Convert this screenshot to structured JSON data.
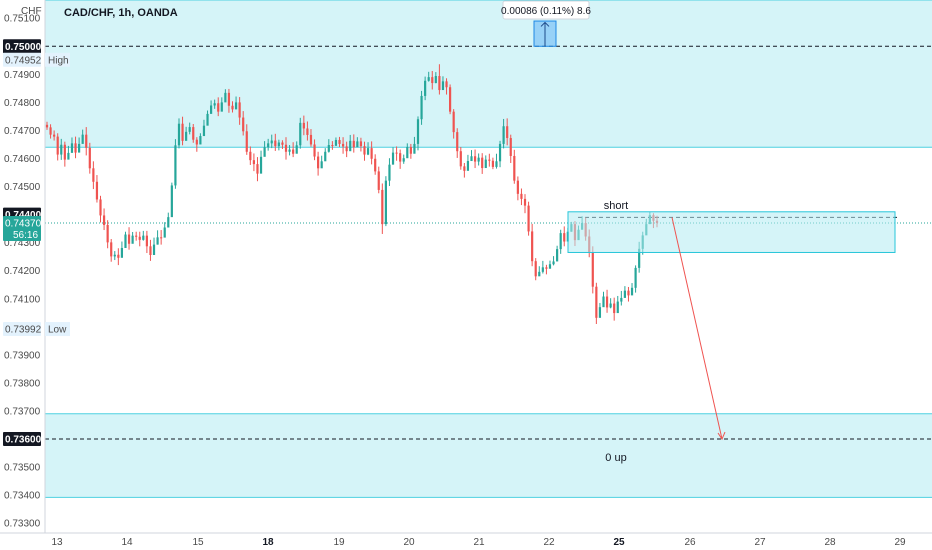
{
  "chart_data": {
    "type": "candlestick",
    "title": "CAD/CHF, 1h, OANDA",
    "currency": "CHF",
    "y_axis": {
      "ticks": [
        "0.75100",
        "0.74900",
        "0.74800",
        "0.74700",
        "0.74600",
        "0.74500",
        "0.74300",
        "0.74200",
        "0.74100",
        "0.73900",
        "0.73800",
        "0.73700",
        "0.73500",
        "0.73400",
        "0.73300"
      ],
      "ylim": [
        0.73265,
        0.75165
      ]
    },
    "x_axis": {
      "labels": [
        "13",
        "14",
        "15",
        "18",
        "19",
        "20",
        "21",
        "22",
        "25",
        "26",
        "27",
        "28",
        "29"
      ],
      "bold_labels": [
        "18",
        "25"
      ]
    },
    "price_labels": [
      {
        "value": "0.75000",
        "style": "dark"
      },
      {
        "value": "0.74952",
        "style": "light",
        "note": "High"
      },
      {
        "value": "0.74400",
        "style": "dark"
      },
      {
        "value": "0.74370",
        "style": "green",
        "note": "56:16"
      },
      {
        "value": "0.73992",
        "style": "light",
        "note": "Low"
      },
      {
        "value": "0.73600",
        "style": "dark"
      }
    ],
    "zones": [
      {
        "from": 0.7464,
        "to": 0.75165
      },
      {
        "from": 0.73392,
        "to": 0.7369
      }
    ],
    "dashed_levels": [
      0.75,
      0.7439,
      0.736
    ],
    "measure_label": "0.00086 (0.11%) 8.6",
    "annotations": {
      "short_label": "short",
      "target_label": "0 up"
    },
    "trade_zone": {
      "top": 0.7441,
      "bottom": 0.74265
    },
    "projection": {
      "from": [
        672,
        0.7439
      ],
      "to": [
        722,
        0.736
      ]
    },
    "candles": [
      [
        0.7472,
        0.74711,
        0.74731,
        0.74702
      ],
      [
        0.74711,
        0.74685,
        0.74722,
        0.74671
      ],
      [
        0.74685,
        0.74678,
        0.747,
        0.74664
      ],
      [
        0.74678,
        0.74614,
        0.7469,
        0.74593
      ],
      [
        0.74614,
        0.74649,
        0.7467,
        0.74595
      ],
      [
        0.74649,
        0.74596,
        0.7466,
        0.74571
      ],
      [
        0.74596,
        0.7462,
        0.74645,
        0.74604
      ],
      [
        0.7462,
        0.74654,
        0.74675,
        0.74634
      ],
      [
        0.74654,
        0.74621,
        0.74678,
        0.74601
      ],
      [
        0.74621,
        0.74652,
        0.74675,
        0.74627
      ],
      [
        0.74652,
        0.74685,
        0.74703,
        0.74669
      ],
      [
        0.74685,
        0.74638,
        0.74712,
        0.74611
      ],
      [
        0.74638,
        0.74565,
        0.74656,
        0.74546
      ],
      [
        0.74565,
        0.74517,
        0.7459,
        0.74491
      ],
      [
        0.74517,
        0.74454,
        0.74541,
        0.74443
      ],
      [
        0.74454,
        0.74397,
        0.74467,
        0.74372
      ],
      [
        0.74397,
        0.74363,
        0.74422,
        0.74345
      ],
      [
        0.74363,
        0.74301,
        0.7438,
        0.7428
      ],
      [
        0.74301,
        0.74251,
        0.74313,
        0.74232
      ],
      [
        0.74251,
        0.74257,
        0.7427,
        0.74238
      ],
      [
        0.74257,
        0.74246,
        0.7428,
        0.7422
      ],
      [
        0.74246,
        0.74281,
        0.74304,
        0.74268
      ],
      [
        0.74281,
        0.74329,
        0.74339,
        0.74313
      ],
      [
        0.74329,
        0.74296,
        0.74355,
        0.74275
      ],
      [
        0.74296,
        0.74325,
        0.74338,
        0.74316
      ],
      [
        0.74325,
        0.74321,
        0.74339,
        0.74307
      ],
      [
        0.74321,
        0.7431,
        0.74339,
        0.74287
      ],
      [
        0.7431,
        0.74325,
        0.74342,
        0.74307
      ],
      [
        0.74325,
        0.74287,
        0.74342,
        0.74263
      ],
      [
        0.74287,
        0.74256,
        0.7431,
        0.74235
      ],
      [
        0.74256,
        0.74293,
        0.74318,
        0.74269
      ],
      [
        0.74293,
        0.74319,
        0.74344,
        0.74293
      ],
      [
        0.74319,
        0.74318,
        0.74345,
        0.74293
      ],
      [
        0.74318,
        0.74354,
        0.74373,
        0.74334
      ],
      [
        0.74354,
        0.74391,
        0.74407,
        0.74383
      ],
      [
        0.74391,
        0.74504,
        0.74514,
        0.74393
      ],
      [
        0.74504,
        0.74647,
        0.74669,
        0.74492
      ],
      [
        0.74647,
        0.74724,
        0.74743,
        0.74636
      ],
      [
        0.74724,
        0.74663,
        0.74749,
        0.74647
      ],
      [
        0.74663,
        0.74695,
        0.74713,
        0.7467
      ],
      [
        0.74695,
        0.74712,
        0.74728,
        0.74686
      ],
      [
        0.74712,
        0.74667,
        0.74723,
        0.74656
      ],
      [
        0.74667,
        0.7465,
        0.74676,
        0.74624
      ],
      [
        0.7465,
        0.7468,
        0.7469,
        0.7466
      ],
      [
        0.7468,
        0.74717,
        0.74738,
        0.74708
      ],
      [
        0.74717,
        0.74759,
        0.74771,
        0.74732
      ],
      [
        0.74759,
        0.74789,
        0.74807,
        0.74765
      ],
      [
        0.74789,
        0.74797,
        0.7481,
        0.74777
      ],
      [
        0.74797,
        0.74767,
        0.74818,
        0.74751
      ],
      [
        0.74767,
        0.748,
        0.74818,
        0.7479
      ],
      [
        0.748,
        0.74834,
        0.74847,
        0.74809
      ],
      [
        0.74834,
        0.74788,
        0.74848,
        0.74763
      ],
      [
        0.74788,
        0.74775,
        0.74804,
        0.74764
      ],
      [
        0.74775,
        0.748,
        0.74821,
        0.74778
      ],
      [
        0.748,
        0.74746,
        0.74819,
        0.7472
      ],
      [
        0.74746,
        0.74697,
        0.74769,
        0.74682
      ],
      [
        0.74697,
        0.74624,
        0.74722,
        0.74613
      ],
      [
        0.74624,
        0.74594,
        0.74643,
        0.74577
      ],
      [
        0.74594,
        0.7458,
        0.74618,
        0.74555
      ],
      [
        0.7458,
        0.74546,
        0.74605,
        0.74519
      ],
      [
        0.74546,
        0.74606,
        0.74628,
        0.74587
      ],
      [
        0.74606,
        0.7464,
        0.74662,
        0.74617
      ],
      [
        0.7464,
        0.74654,
        0.7467,
        0.74628
      ],
      [
        0.74654,
        0.74664,
        0.74685,
        0.74637
      ],
      [
        0.74664,
        0.74644,
        0.74688,
        0.74627
      ],
      [
        0.74644,
        0.74657,
        0.74667,
        0.74629
      ],
      [
        0.74657,
        0.74649,
        0.74665,
        0.74634
      ],
      [
        0.74649,
        0.74624,
        0.74676,
        0.74596
      ],
      [
        0.74624,
        0.74632,
        0.74648,
        0.74611
      ],
      [
        0.74632,
        0.74617,
        0.74658,
        0.74605
      ],
      [
        0.74617,
        0.74647,
        0.74661,
        0.7463
      ],
      [
        0.74647,
        0.74727,
        0.74745,
        0.74635
      ],
      [
        0.74727,
        0.74707,
        0.74753,
        0.74683
      ],
      [
        0.74707,
        0.74684,
        0.74732,
        0.74664
      ],
      [
        0.74684,
        0.7465,
        0.74705,
        0.74642
      ],
      [
        0.7465,
        0.74607,
        0.74668,
        0.74594
      ],
      [
        0.74607,
        0.74565,
        0.74624,
        0.74539
      ],
      [
        0.74565,
        0.7459,
        0.7461,
        0.74569
      ],
      [
        0.7459,
        0.74624,
        0.74637,
        0.74598
      ],
      [
        0.74624,
        0.74648,
        0.74669,
        0.74621
      ],
      [
        0.74648,
        0.74645,
        0.74662,
        0.74631
      ],
      [
        0.74645,
        0.74666,
        0.74675,
        0.7465
      ],
      [
        0.74666,
        0.74652,
        0.74677,
        0.74641
      ],
      [
        0.74652,
        0.74643,
        0.74676,
        0.74617
      ],
      [
        0.74643,
        0.74626,
        0.7466,
        0.74605
      ],
      [
        0.74626,
        0.74663,
        0.74684,
        0.74654
      ],
      [
        0.74663,
        0.7464,
        0.74686,
        0.74621
      ],
      [
        0.7464,
        0.74661,
        0.74676,
        0.74651
      ],
      [
        0.74661,
        0.74644,
        0.74674,
        0.74625
      ],
      [
        0.74644,
        0.74614,
        0.7466,
        0.74592
      ],
      [
        0.74614,
        0.74637,
        0.74658,
        0.74612
      ],
      [
        0.74637,
        0.74599,
        0.74661,
        0.74579
      ],
      [
        0.74599,
        0.74554,
        0.74615,
        0.74542
      ],
      [
        0.74554,
        0.74488,
        0.74571,
        0.74476
      ],
      [
        0.74488,
        0.74366,
        0.74511,
        0.74331
      ],
      [
        0.74366,
        0.74521,
        0.74537,
        0.74359
      ],
      [
        0.74521,
        0.74578,
        0.74601,
        0.74502
      ],
      [
        0.74578,
        0.74621,
        0.7464,
        0.74595
      ],
      [
        0.74621,
        0.74619,
        0.74643,
        0.74592
      ],
      [
        0.74619,
        0.74589,
        0.74632,
        0.74563
      ],
      [
        0.74589,
        0.74601,
        0.74614,
        0.74581
      ],
      [
        0.74601,
        0.74641,
        0.74654,
        0.74619
      ],
      [
        0.74641,
        0.74617,
        0.74652,
        0.74599
      ],
      [
        0.74617,
        0.74652,
        0.74677,
        0.74636
      ],
      [
        0.74652,
        0.7474,
        0.7475,
        0.74629
      ],
      [
        0.7474,
        0.74823,
        0.74841,
        0.7472
      ],
      [
        0.74823,
        0.74877,
        0.74892,
        0.74808
      ],
      [
        0.74877,
        0.7489,
        0.74909,
        0.74874
      ],
      [
        0.7489,
        0.74869,
        0.74912,
        0.74846
      ],
      [
        0.74869,
        0.74894,
        0.74908,
        0.74868
      ],
      [
        0.74894,
        0.74844,
        0.74936,
        0.74828
      ],
      [
        0.74844,
        0.74875,
        0.74893,
        0.74847
      ],
      [
        0.74875,
        0.74854,
        0.74886,
        0.74828
      ],
      [
        0.74854,
        0.74767,
        0.74864,
        0.74758
      ],
      [
        0.74767,
        0.74694,
        0.74776,
        0.74671
      ],
      [
        0.74694,
        0.74626,
        0.74708,
        0.74602
      ],
      [
        0.74626,
        0.74572,
        0.74641,
        0.7456
      ],
      [
        0.74572,
        0.74556,
        0.74584,
        0.74532
      ],
      [
        0.74556,
        0.74591,
        0.74613,
        0.74578
      ],
      [
        0.74591,
        0.74608,
        0.7463,
        0.74595
      ],
      [
        0.74608,
        0.74589,
        0.74632,
        0.74566
      ],
      [
        0.74589,
        0.74603,
        0.74618,
        0.74575
      ],
      [
        0.74603,
        0.74566,
        0.74619,
        0.74545
      ],
      [
        0.74566,
        0.74596,
        0.74611,
        0.7458
      ],
      [
        0.74596,
        0.74592,
        0.74617,
        0.74571
      ],
      [
        0.74592,
        0.7457,
        0.74603,
        0.74562
      ],
      [
        0.7457,
        0.7459,
        0.74617,
        0.74564
      ],
      [
        0.7459,
        0.74652,
        0.74663,
        0.74569
      ],
      [
        0.74652,
        0.74715,
        0.74741,
        0.74636
      ],
      [
        0.74715,
        0.74673,
        0.74743,
        0.74647
      ],
      [
        0.74673,
        0.74609,
        0.74685,
        0.74584
      ],
      [
        0.74609,
        0.74521,
        0.74631,
        0.7451
      ],
      [
        0.74521,
        0.74474,
        0.74536,
        0.74451
      ],
      [
        0.74474,
        0.74456,
        0.74493,
        0.74434
      ],
      [
        0.74456,
        0.74432,
        0.74473,
        0.74405
      ],
      [
        0.74432,
        0.7434,
        0.74446,
        0.74325
      ],
      [
        0.7434,
        0.74234,
        0.74367,
        0.74216
      ],
      [
        0.74234,
        0.7418,
        0.74245,
        0.74166
      ],
      [
        0.7418,
        0.74196,
        0.74216,
        0.74188
      ],
      [
        0.74196,
        0.74212,
        0.74235,
        0.7419
      ],
      [
        0.74212,
        0.74207,
        0.74221,
        0.74187
      ],
      [
        0.74207,
        0.74223,
        0.74236,
        0.74208
      ],
      [
        0.74223,
        0.74233,
        0.74252,
        0.74219
      ],
      [
        0.74233,
        0.74277,
        0.74289,
        0.74252
      ],
      [
        0.74277,
        0.74334,
        0.74346,
        0.7426
      ],
      [
        0.74334,
        0.74304,
        0.74358,
        0.74287
      ],
      [
        0.74304,
        0.74339,
        0.74353,
        0.74323
      ],
      [
        0.74339,
        0.74366,
        0.74374,
        0.74339
      ],
      [
        0.74366,
        0.74309,
        0.74377,
        0.74288
      ],
      [
        0.74309,
        0.74346,
        0.74361,
        0.74333
      ],
      [
        0.74346,
        0.7437,
        0.74394,
        0.74351
      ],
      [
        0.7437,
        0.74322,
        0.7439,
        0.74307
      ],
      [
        0.74322,
        0.74265,
        0.74347,
        0.74248
      ],
      [
        0.74265,
        0.74143,
        0.74287,
        0.74119
      ],
      [
        0.74143,
        0.74032,
        0.74157,
        0.7401
      ],
      [
        0.74032,
        0.7407,
        0.74085,
        0.74051
      ],
      [
        0.7407,
        0.74108,
        0.74125,
        0.74089
      ],
      [
        0.74108,
        0.74069,
        0.74132,
        0.7405
      ],
      [
        0.74069,
        0.74083,
        0.74102,
        0.74066
      ],
      [
        0.74083,
        0.74049,
        0.74104,
        0.74022
      ],
      [
        0.74049,
        0.7409,
        0.7411,
        0.74071
      ],
      [
        0.7409,
        0.74103,
        0.74128,
        0.74076
      ],
      [
        0.74103,
        0.74129,
        0.74145,
        0.74118
      ],
      [
        0.74129,
        0.74112,
        0.74142,
        0.7409
      ],
      [
        0.74112,
        0.74139,
        0.74156,
        0.7412
      ],
      [
        0.74139,
        0.7421,
        0.74219,
        0.74122
      ],
      [
        0.7421,
        0.74278,
        0.74303,
        0.74193
      ],
      [
        0.74278,
        0.74326,
        0.74339,
        0.74257
      ],
      [
        0.74326,
        0.74366,
        0.74385,
        0.74342
      ],
      [
        0.74366,
        0.74398,
        0.7441,
        0.74375
      ],
      [
        0.74398,
        0.74378,
        0.74405,
        0.74352
      ],
      [
        0.74378,
        0.7437,
        0.74396,
        0.74355
      ]
    ]
  }
}
